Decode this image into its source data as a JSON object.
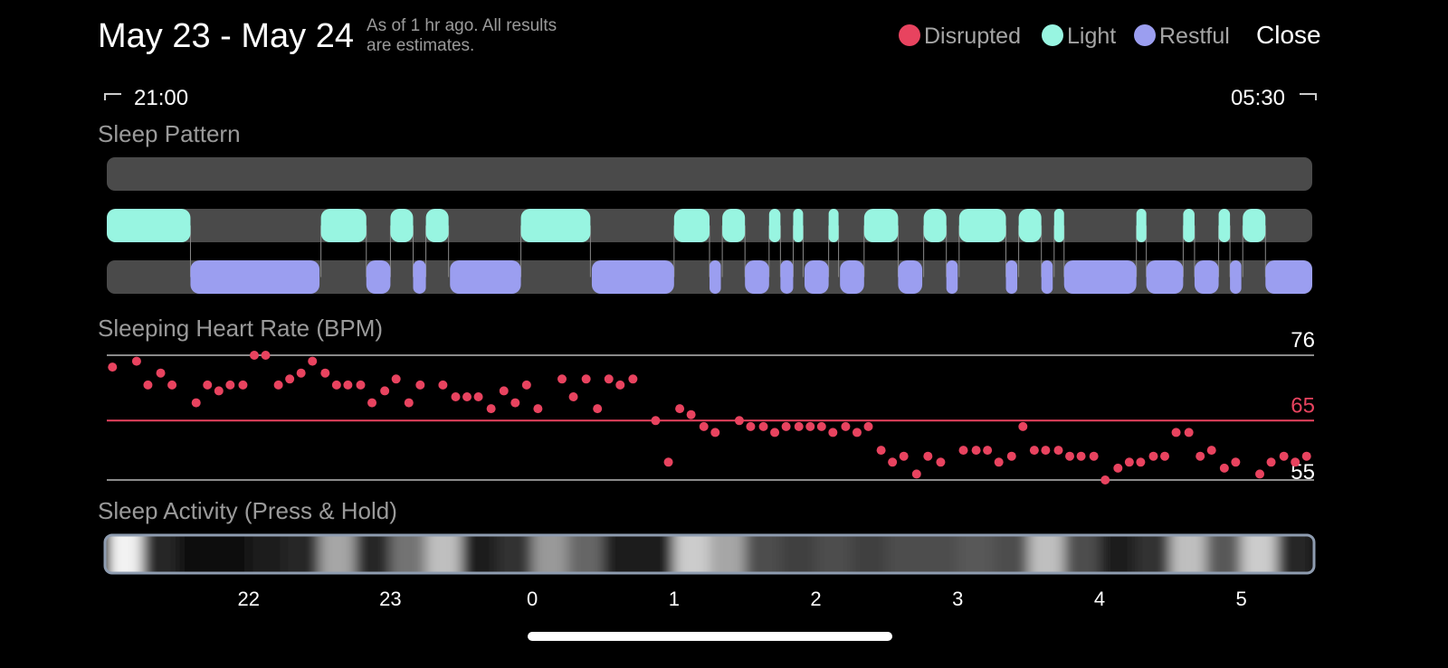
{
  "header": {
    "title": "May 23 - May 24",
    "subtitle_lines": [
      "As of 1 hr ago. All results",
      "are estimates."
    ],
    "close": "Close"
  },
  "time_range": {
    "start": "21:00",
    "end": "05:30"
  },
  "xlim": [
    0,
    8.5
  ],
  "xticks": [
    {
      "value": 1,
      "label": "22"
    },
    {
      "value": 2,
      "label": "23"
    },
    {
      "value": 3,
      "label": "0"
    },
    {
      "value": 4,
      "label": "1"
    },
    {
      "value": 5,
      "label": "2"
    },
    {
      "value": 6,
      "label": "3"
    },
    {
      "value": 7,
      "label": "4"
    },
    {
      "value": 8,
      "label": "5"
    }
  ],
  "sleep_pattern": {
    "title": "Sleep Pattern",
    "rows": [
      {
        "name": "Disrupted",
        "color": "#e8435f",
        "segments": []
      },
      {
        "name": "Light",
        "color": "#98f5e1",
        "segments": [
          [
            0,
            0.59
          ],
          [
            1.51,
            1.83
          ],
          [
            2.0,
            2.16
          ],
          [
            2.25,
            2.41
          ],
          [
            2.92,
            3.41
          ],
          [
            4.0,
            4.25
          ],
          [
            4.34,
            4.5
          ],
          [
            4.67,
            4.75
          ],
          [
            4.84,
            4.91
          ],
          [
            5.09,
            5.16
          ],
          [
            5.34,
            5.58
          ],
          [
            5.76,
            5.92
          ],
          [
            6.01,
            6.34
          ],
          [
            6.43,
            6.59
          ],
          [
            6.68,
            6.75
          ],
          [
            7.26,
            7.33
          ],
          [
            7.59,
            7.67
          ],
          [
            7.84,
            7.92
          ],
          [
            8.01,
            8.17
          ]
        ]
      },
      {
        "name": "Restful",
        "color": "#9b9ef0",
        "segments": [
          [
            0.59,
            1.5
          ],
          [
            1.83,
            2.0
          ],
          [
            2.16,
            2.25
          ],
          [
            2.42,
            2.92
          ],
          [
            3.42,
            4.0
          ],
          [
            4.25,
            4.33
          ],
          [
            4.5,
            4.67
          ],
          [
            4.75,
            4.84
          ],
          [
            4.92,
            5.09
          ],
          [
            5.17,
            5.34
          ],
          [
            5.58,
            5.75
          ],
          [
            5.92,
            6.0
          ],
          [
            6.34,
            6.42
          ],
          [
            6.59,
            6.67
          ],
          [
            6.75,
            7.26
          ],
          [
            7.33,
            7.59
          ],
          [
            7.67,
            7.84
          ],
          [
            7.92,
            8.0
          ],
          [
            8.17,
            8.5
          ]
        ]
      }
    ]
  },
  "heart_rate": {
    "title": "Sleeping Heart Rate (BPM)",
    "ylim": [
      55,
      76
    ],
    "yticks": [
      55,
      76
    ],
    "average": 65,
    "color": "#e8435f",
    "x": [
      0.04,
      0.21,
      0.29,
      0.38,
      0.46,
      0.63,
      0.71,
      0.79,
      0.87,
      0.96,
      1.04,
      1.12,
      1.21,
      1.29,
      1.37,
      1.45,
      1.54,
      1.62,
      1.7,
      1.79,
      1.87,
      1.96,
      2.04,
      2.13,
      2.21,
      2.37,
      2.46,
      2.54,
      2.62,
      2.71,
      2.8,
      2.88,
      2.96,
      3.04,
      3.21,
      3.29,
      3.38,
      3.46,
      3.54,
      3.62,
      3.71,
      3.87,
      3.96,
      4.04,
      4.12,
      4.21,
      4.29,
      4.46,
      4.54,
      4.63,
      4.71,
      4.79,
      4.88,
      4.96,
      5.04,
      5.12,
      5.21,
      5.29,
      5.37,
      5.46,
      5.54,
      5.62,
      5.71,
      5.79,
      5.88,
      6.04,
      6.13,
      6.21,
      6.29,
      6.38,
      6.46,
      6.54,
      6.62,
      6.71,
      6.79,
      6.87,
      6.96,
      7.04,
      7.13,
      7.21,
      7.29,
      7.38,
      7.46,
      7.54,
      7.63,
      7.71,
      7.79,
      7.88,
      7.96,
      8.13,
      8.21,
      8.3,
      8.38,
      8.46
    ],
    "values": [
      74,
      75,
      71,
      73,
      71,
      68,
      71,
      70,
      71,
      71,
      76,
      76,
      71,
      72,
      73,
      75,
      73,
      71,
      71,
      71,
      68,
      70,
      72,
      68,
      71,
      71,
      69,
      69,
      69,
      67,
      70,
      68,
      71,
      67,
      72,
      69,
      72,
      67,
      72,
      71,
      72,
      65,
      58,
      67,
      66,
      64,
      63,
      65,
      64,
      64,
      63,
      64,
      64,
      64,
      64,
      63,
      64,
      63,
      64,
      60,
      58,
      59,
      56,
      59,
      58,
      60,
      60,
      60,
      58,
      59,
      64,
      60,
      60,
      60,
      59,
      59,
      59,
      55,
      57,
      58,
      58,
      59,
      59,
      63,
      63,
      59,
      60,
      57,
      58,
      56,
      58,
      59,
      58,
      59
    ]
  },
  "sleep_activity": {
    "title": "Sleep Activity (Press & Hold)",
    "bins": [
      0,
      0.25,
      0.5,
      0.75,
      1,
      1.25,
      1.5,
      1.75,
      2,
      2.25,
      2.5,
      2.75,
      3,
      3.25,
      3.5,
      3.75,
      4,
      4.25,
      4.5,
      4.75,
      5,
      5.25,
      5.5,
      5.75,
      6,
      6.25,
      6.5,
      6.75,
      7,
      7.25,
      7.5,
      7.75,
      8,
      8.25,
      8.5
    ],
    "values": [
      0.95,
      0.15,
      0.05,
      0.05,
      0.1,
      0.15,
      0.65,
      0.15,
      0.45,
      0.75,
      0.1,
      0.2,
      0.6,
      0.4,
      0.1,
      0.1,
      0.8,
      0.65,
      0.3,
      0.25,
      0.3,
      0.25,
      0.3,
      0.3,
      0.35,
      0.3,
      0.75,
      0.3,
      0.1,
      0.2,
      0.75,
      0.35,
      0.8,
      0.15
    ]
  }
}
